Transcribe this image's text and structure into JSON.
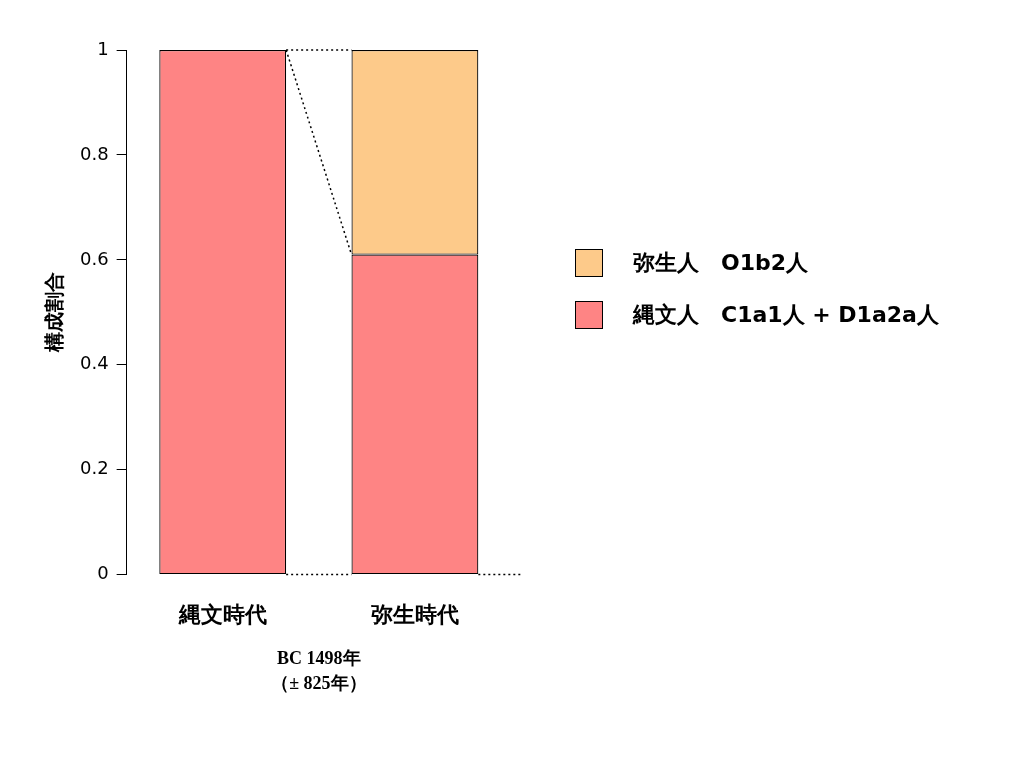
{
  "chart_data": {
    "type": "bar",
    "stacked": true,
    "ylabel": "構成割合",
    "categories": [
      "縄文時代",
      "弥生時代"
    ],
    "series": [
      {
        "name": "縄文人　C1a1人 + D1a2a人",
        "color": "#fe8484",
        "values": [
          1,
          0.61
        ]
      },
      {
        "name": "弥生人　O1b2人",
        "color": "#fdca8a",
        "values": [
          0,
          0.39
        ]
      }
    ],
    "ylim": [
      0,
      1
    ],
    "yticks": [
      0,
      0.2,
      0.4,
      0.6,
      0.8,
      1
    ],
    "grid": false,
    "legend": "right",
    "annotations": [
      "BC 1498年",
      "（± 825年）"
    ]
  }
}
